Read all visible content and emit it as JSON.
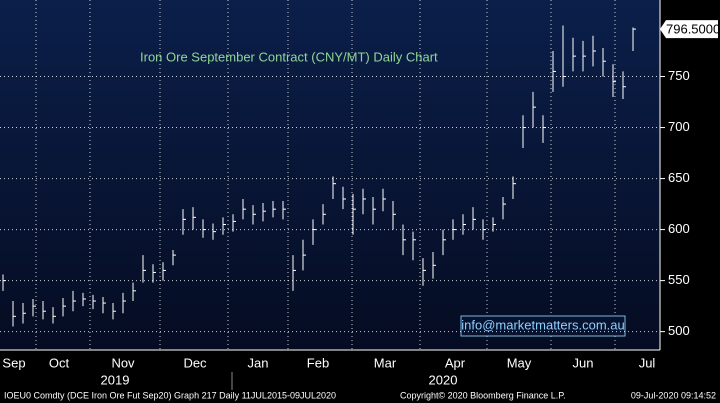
{
  "chart_data": {
    "type": "ohlc",
    "title": "Iron Ore September Contract (CNY/MT) Daily Chart",
    "watermark": "info@marketmatters.com.au",
    "last_price_label": "796.5000",
    "months": [
      "Sep",
      "Oct",
      "Nov",
      "Dec",
      "Jan",
      "Feb",
      "Mar",
      "Apr",
      "May",
      "Jun",
      "Jul"
    ],
    "years": [
      "2019",
      "2020"
    ],
    "footer": {
      "left": "IOEU0 Comdty (DCE Iron Ore Fut  Sep20) Graph 217  Daily 11JUL2015-09JUL2020",
      "center": "Copyright© 2020 Bloomberg Finance L.P.",
      "right": "09-Jul-2020 09:14:52"
    },
    "color": "#ffffff",
    "grid": true,
    "ylim": [
      482,
      825
    ],
    "yticks": [
      500,
      550,
      600,
      650,
      700,
      750
    ],
    "close": [
      550,
      515,
      518,
      525,
      520,
      515,
      525,
      530,
      532,
      530,
      528,
      520,
      530,
      540,
      560,
      558,
      560,
      575,
      610,
      612,
      600,
      598,
      605,
      608,
      620,
      615,
      618,
      620,
      620,
      560,
      575,
      600,
      615,
      645,
      630,
      620,
      630,
      620,
      630,
      615,
      590,
      590,
      560,
      565,
      590,
      600,
      605,
      610,
      600,
      605,
      625,
      645,
      700,
      720,
      700,
      755,
      750,
      770,
      770,
      775,
      765,
      745,
      740,
      796.5
    ],
    "high": [
      556,
      530,
      528,
      532,
      530,
      524,
      533,
      540,
      538,
      536,
      534,
      528,
      538,
      548,
      575,
      566,
      568,
      580,
      620,
      622,
      610,
      606,
      612,
      615,
      630,
      624,
      626,
      628,
      628,
      575,
      590,
      610,
      625,
      652,
      642,
      635,
      640,
      632,
      640,
      628,
      605,
      598,
      572,
      578,
      600,
      610,
      615,
      622,
      610,
      612,
      632,
      652,
      712,
      735,
      712,
      775,
      800,
      788,
      785,
      790,
      778,
      762,
      755,
      798
    ],
    "low": [
      540,
      505,
      508,
      515,
      512,
      508,
      515,
      520,
      525,
      522,
      518,
      512,
      518,
      530,
      548,
      548,
      550,
      565,
      595,
      600,
      592,
      590,
      595,
      598,
      610,
      605,
      608,
      612,
      610,
      540,
      560,
      585,
      605,
      630,
      620,
      595,
      615,
      605,
      618,
      600,
      575,
      570,
      545,
      552,
      575,
      590,
      595,
      600,
      590,
      598,
      610,
      630,
      680,
      700,
      685,
      735,
      740,
      755,
      755,
      760,
      750,
      730,
      728,
      775
    ]
  }
}
